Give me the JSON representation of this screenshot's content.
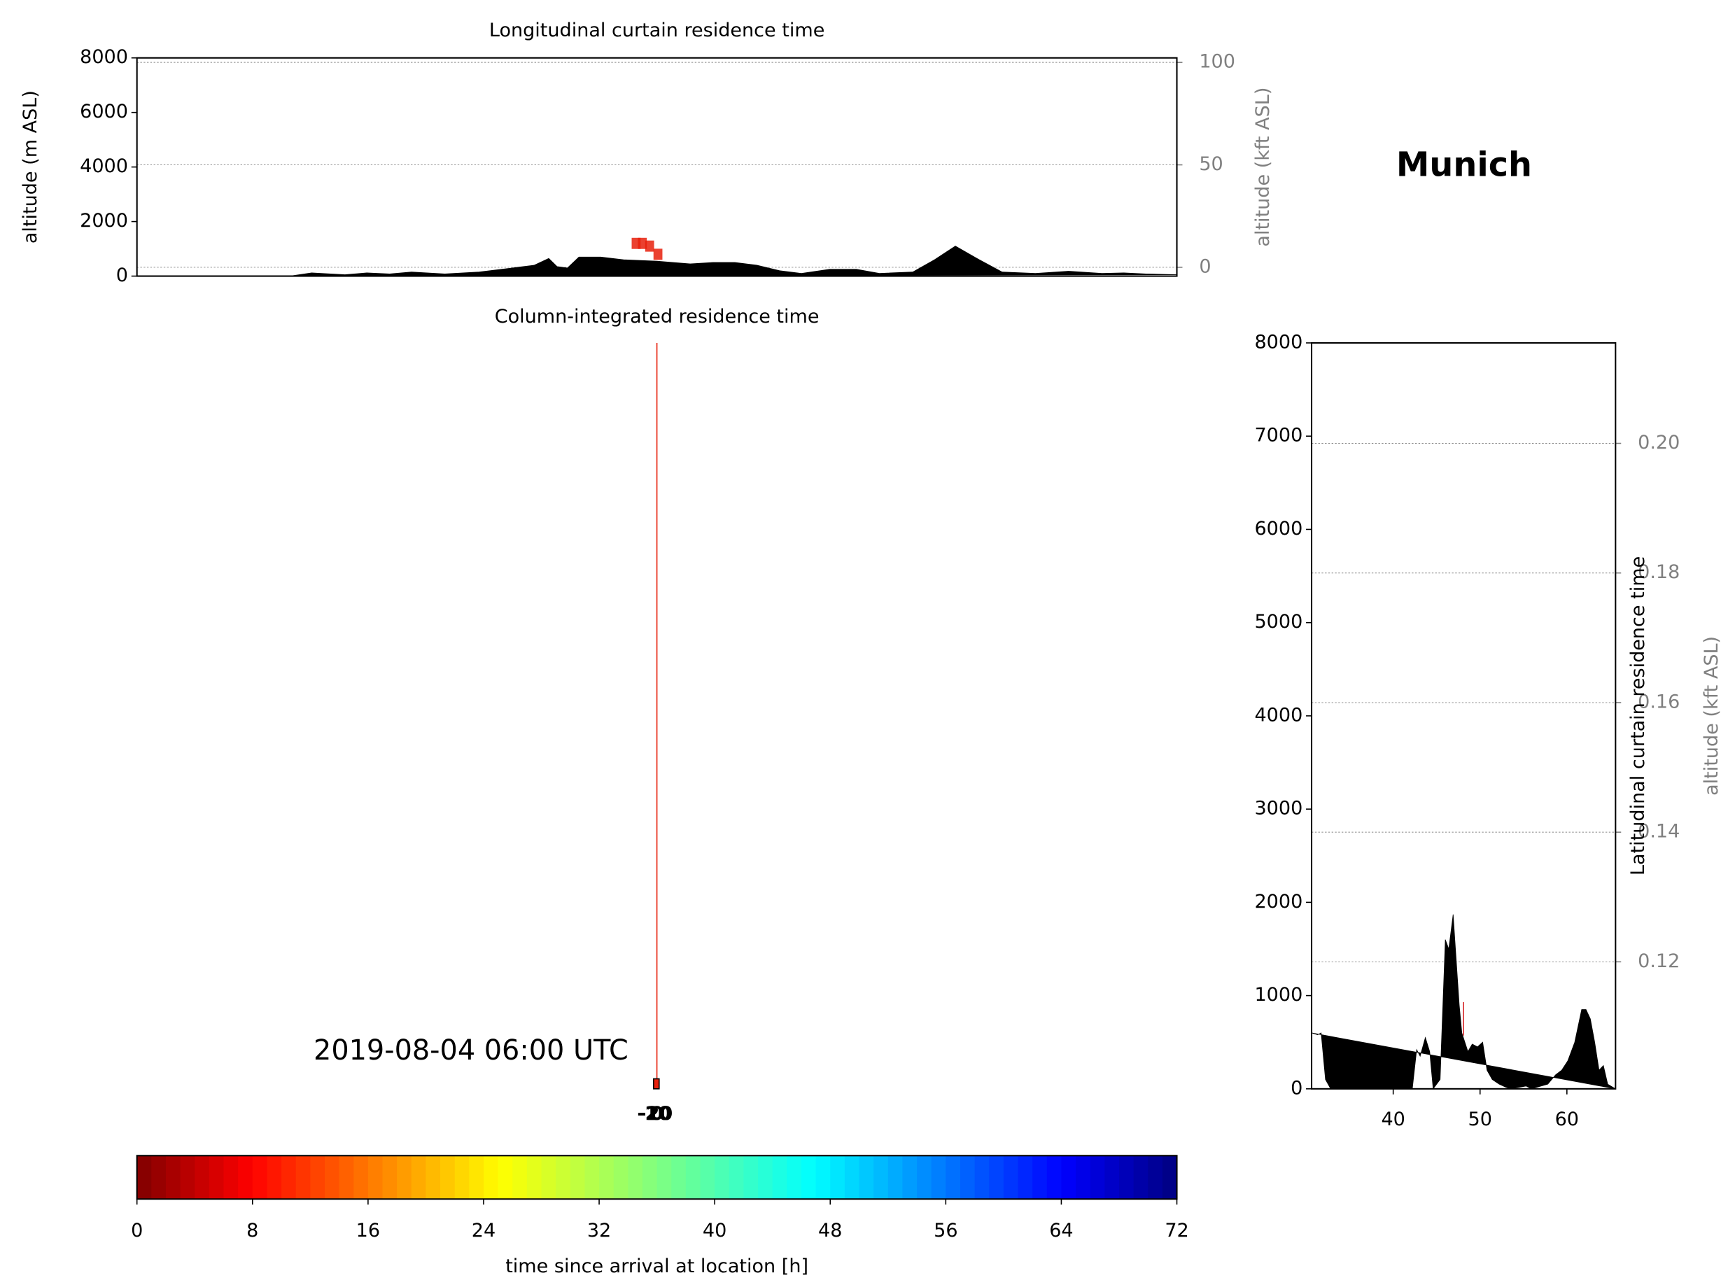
{
  "title": "Munich",
  "chart_data": [
    {
      "type": "curtain",
      "title": "Longitudinal curtain residence time",
      "ylabel": "altitude (m ASL)",
      "y2label": "altitude (kft ASL)",
      "xlim": [
        0,
        100
      ],
      "ylim": [
        0,
        8000
      ],
      "yticks": [
        0,
        2000,
        4000,
        6000,
        8000
      ],
      "y2lim": [
        -4.3,
        102.2
      ],
      "y2ticks": [
        0,
        50,
        100
      ],
      "grid": true,
      "color": "#000000",
      "x": [
        0,
        14.7,
        16.8,
        20.0,
        22.1,
        24.3,
        26.4,
        29.6,
        32.9,
        36.1,
        38.2,
        39.6,
        40.4,
        41.4,
        42.5,
        44.6,
        46.8,
        50.0,
        53.2,
        55.4,
        57.5,
        59.6,
        61.8,
        63.9,
        66.6,
        69.2,
        71.4,
        74.6,
        76.7,
        78.7,
        81.0,
        83.2,
        86.4,
        89.6,
        92.8,
        94.9,
        97.0,
        100
      ],
      "values": [
        0,
        0,
        120,
        50,
        120,
        80,
        150,
        80,
        150,
        300,
        400,
        650,
        350,
        300,
        700,
        700,
        600,
        550,
        450,
        500,
        500,
        400,
        200,
        100,
        250,
        250,
        100,
        150,
        600,
        1100,
        600,
        150,
        100,
        180,
        100,
        120,
        80,
        50
      ],
      "markers": {
        "x": [
          48.0,
          48.6,
          49.3,
          50.1
        ],
        "values": [
          1200,
          1200,
          1100,
          800
        ],
        "color": "#e8200c"
      }
    },
    {
      "type": "map",
      "title": "Column-integrated residence time",
      "timestamp": "2019-08-04 06:00 UTC",
      "xlim": [
        -25,
        25
      ],
      "xticks": [
        -20,
        -10,
        0,
        10,
        20
      ],
      "color": "#e8200c"
    },
    {
      "type": "curtain",
      "title": "Latitudinal curtain residence time",
      "y2label": "altitude (kft ASL)",
      "xlim": [
        30.6,
        65.6
      ],
      "xticks": [
        40,
        50,
        60
      ],
      "ylim": [
        0,
        8000
      ],
      "yticks": [
        0,
        1000,
        2000,
        3000,
        4000,
        5000,
        6000,
        7000,
        8000
      ],
      "y2lim": [
        0.1004,
        0.2155
      ],
      "y2ticks": [
        {
          "value": 0.12,
          "label": "0.12"
        },
        {
          "value": 0.14,
          "label": "0.14"
        },
        {
          "value": 0.16,
          "label": "0.16"
        },
        {
          "value": 0.18,
          "label": "0.18"
        },
        {
          "value": 0.2,
          "label": "0.20"
        }
      ],
      "grid": true,
      "color": "#000000",
      "x": [
        30.6,
        31.3,
        31.7,
        32.2,
        32.8,
        42.2,
        42.7,
        43.1,
        43.7,
        44.2,
        44.6,
        45.4,
        46.0,
        46.4,
        46.9,
        47.6,
        47.9,
        48.6,
        49.1,
        49.7,
        50.3,
        50.8,
        51.4,
        52.2,
        52.9,
        53.5,
        55.3,
        55.9,
        57.8,
        58.7,
        59.4,
        60.1,
        60.9,
        61.7,
        62.2,
        62.7,
        63.2,
        63.7,
        64.2,
        64.7,
        65.6
      ],
      "values": [
        600,
        580,
        600,
        100,
        0,
        0,
        420,
        350,
        550,
        400,
        0,
        100,
        1600,
        1500,
        1870,
        900,
        600,
        400,
        480,
        450,
        500,
        200,
        100,
        50,
        20,
        0,
        30,
        0,
        50,
        150,
        200,
        300,
        500,
        850,
        850,
        750,
        500,
        200,
        250,
        50,
        0
      ],
      "markers": {
        "x": [
          48.1
        ],
        "values": [
          930
        ],
        "color": "#d62728"
      }
    },
    {
      "type": "colorbar",
      "xlabel": "time since arrival at location [h]",
      "xlim": [
        0,
        72
      ],
      "xticks": [
        0,
        8,
        16,
        24,
        32,
        40,
        48,
        56,
        64,
        72
      ],
      "levels": 72,
      "colormap": [
        [
          0,
          "#800000"
        ],
        [
          0.11,
          "#ff0000"
        ],
        [
          0.35,
          "#ffff00"
        ],
        [
          0.5,
          "#80ff80"
        ],
        [
          0.65,
          "#00ffff"
        ],
        [
          0.89,
          "#0000ff"
        ],
        [
          1,
          "#000080"
        ]
      ]
    }
  ]
}
